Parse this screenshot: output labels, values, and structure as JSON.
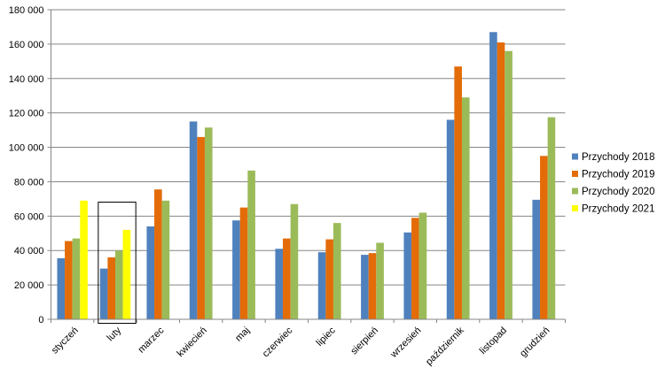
{
  "chart_data": {
    "type": "bar",
    "title": "",
    "xlabel": "",
    "ylabel": "",
    "ylim": [
      0,
      180000
    ],
    "yticks": [
      0,
      20000,
      40000,
      60000,
      80000,
      100000,
      120000,
      140000,
      160000,
      180000
    ],
    "ytick_labels": [
      "0",
      "20 000",
      "40 000",
      "60 000",
      "80 000",
      "100 000",
      "120 000",
      "140 000",
      "160 000",
      "180 000"
    ],
    "grid": "horizontal",
    "legend_position": "right",
    "highlighted_category": "luty",
    "categories": [
      "styczeń",
      "luty",
      "marzec",
      "kwiecień",
      "maj",
      "czerwiec",
      "lipiec",
      "sierpień",
      "wrzesień",
      "październik",
      "listopad",
      "grudzień"
    ],
    "series": [
      {
        "name": "Przychody 2018",
        "color": "#4F81BD",
        "values": [
          35500,
          29500,
          54000,
          115000,
          57500,
          41000,
          39000,
          37500,
          50500,
          116000,
          167000,
          69500
        ]
      },
      {
        "name": "Przychody 2019",
        "color": "#E36C09",
        "values": [
          45500,
          36000,
          75500,
          106000,
          65000,
          47000,
          46500,
          38500,
          59000,
          147000,
          161000,
          95000
        ]
      },
      {
        "name": "Przychody 2020",
        "color": "#9BBB59",
        "values": [
          47000,
          40000,
          69000,
          111500,
          86500,
          67000,
          56000,
          44500,
          62000,
          129000,
          156000,
          117500
        ]
      },
      {
        "name": "Przychody 2021",
        "color": "#FFFF00",
        "values": [
          69000,
          52000,
          null,
          null,
          null,
          null,
          null,
          null,
          null,
          null,
          null,
          null
        ]
      }
    ]
  }
}
